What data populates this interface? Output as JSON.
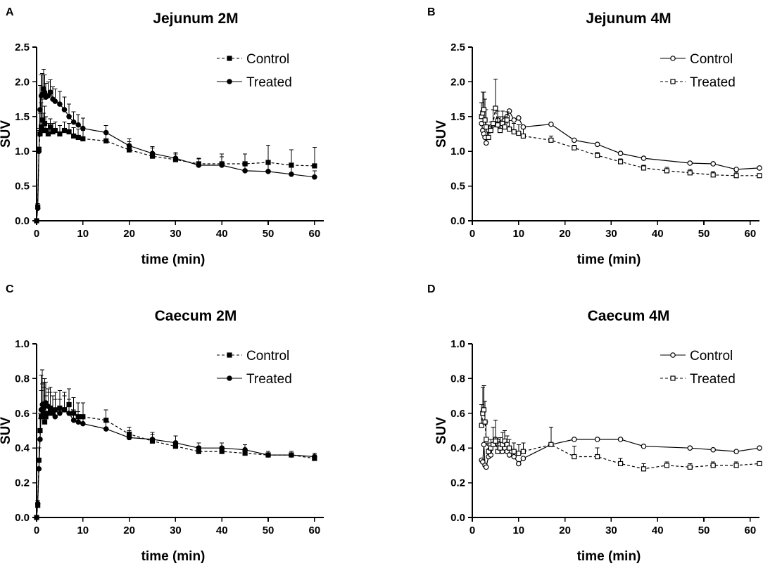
{
  "figure": {
    "panel_letters": [
      "A",
      "B",
      "C",
      "D"
    ]
  },
  "chart_data": [
    {
      "panel": "A",
      "type": "line",
      "title": "Jejunum 2M",
      "xlabel": "time (min)",
      "ylabel": "SUV",
      "xlim": [
        0,
        62
      ],
      "ylim": [
        0,
        2.5
      ],
      "xticks": [
        0,
        10,
        20,
        30,
        40,
        50,
        60
      ],
      "yticks": [
        0.0,
        0.5,
        1.0,
        1.5,
        2.0,
        2.5
      ],
      "ytick_labels": [
        "0.0",
        "0.5",
        "1.0",
        "1.5",
        "2.0",
        "2.5"
      ],
      "series": [
        {
          "name": "Control",
          "style": "dashed",
          "marker": "square",
          "filled": true,
          "x": [
            0,
            0.25,
            0.5,
            0.75,
            1,
            1.25,
            1.5,
            1.75,
            2,
            2.5,
            3,
            3.5,
            4,
            5,
            6,
            7,
            8,
            9,
            10,
            15,
            20,
            25,
            30,
            35,
            40,
            45,
            50,
            55,
            60
          ],
          "y": [
            0,
            0.2,
            1.03,
            1.25,
            1.35,
            1.45,
            1.3,
            1.4,
            1.3,
            1.25,
            1.35,
            1.28,
            1.3,
            1.25,
            1.3,
            1.28,
            1.22,
            1.2,
            1.18,
            1.15,
            1.02,
            0.93,
            0.88,
            0.82,
            0.82,
            0.82,
            0.84,
            0.8,
            0.79
          ],
          "err": [
            0,
            0.05,
            0.3,
            0.3,
            0.35,
            0.3,
            0.25,
            0.25,
            0.2,
            0.15,
            0.12,
            0.12,
            0.12,
            0.12,
            0.12,
            0.12,
            0.12,
            0.12,
            0.12,
            0.12,
            0.12,
            0.12,
            0.08,
            0.07,
            0.14,
            0.14,
            0.25,
            0.22,
            0.27
          ]
        },
        {
          "name": "Treated",
          "style": "solid",
          "marker": "circle",
          "filled": true,
          "x": [
            0,
            0.25,
            0.5,
            0.75,
            1,
            1.25,
            1.5,
            1.75,
            2,
            2.5,
            3,
            3.5,
            4,
            5,
            6,
            7,
            8,
            9,
            10,
            15,
            20,
            25,
            30,
            35,
            40,
            45,
            50,
            55,
            60
          ],
          "y": [
            0,
            0.18,
            1.0,
            1.6,
            1.8,
            1.82,
            1.9,
            1.85,
            1.78,
            1.8,
            1.85,
            1.75,
            1.72,
            1.68,
            1.6,
            1.5,
            1.42,
            1.38,
            1.33,
            1.27,
            1.08,
            0.97,
            0.9,
            0.8,
            0.8,
            0.72,
            0.71,
            0.67,
            0.63
          ],
          "err": [
            0,
            0.05,
            0.3,
            0.35,
            0.3,
            0.3,
            0.28,
            0.25,
            0.2,
            0.2,
            0.18,
            0.18,
            0.18,
            0.18,
            0.18,
            0.18,
            0.15,
            0.15,
            0.15,
            0.1,
            0.1,
            0.1,
            0.08,
            0.1,
            0.12,
            0.1,
            0.1,
            0.1,
            0.09
          ]
        }
      ]
    },
    {
      "panel": "B",
      "type": "line",
      "title": "Jejunum 4M",
      "xlabel": "time (min)",
      "ylabel": "SUV",
      "xlim": [
        0,
        62
      ],
      "ylim": [
        0,
        2.5
      ],
      "xticks": [
        0,
        10,
        20,
        30,
        40,
        50,
        60
      ],
      "yticks": [
        0.0,
        0.5,
        1.0,
        1.5,
        2.0,
        2.5
      ],
      "ytick_labels": [
        "0.0",
        "0.5",
        "1.0",
        "1.5",
        "2.0",
        "2.5"
      ],
      "series": [
        {
          "name": "Control",
          "style": "solid",
          "marker": "circle",
          "filled": false,
          "x": [
            2,
            2.25,
            2.5,
            2.75,
            3,
            3.5,
            4,
            4.5,
            5,
            5.5,
            6,
            6.5,
            7,
            7.5,
            8,
            9,
            10,
            11,
            17,
            22,
            27,
            32,
            37,
            47,
            52,
            57,
            62
          ],
          "y": [
            1.4,
            1.3,
            1.25,
            1.2,
            1.12,
            1.3,
            1.35,
            1.38,
            1.4,
            1.45,
            1.35,
            1.42,
            1.45,
            1.5,
            1.58,
            1.45,
            1.48,
            1.35,
            1.39,
            1.16,
            1.1,
            0.97,
            0.9,
            0.83,
            0.82,
            0.74,
            0.76
          ],
          "err": [
            0,
            0,
            0,
            0,
            0,
            0,
            0,
            0,
            0,
            0,
            0,
            0,
            0,
            0,
            0,
            0,
            0,
            0,
            0,
            0,
            0,
            0,
            0,
            0,
            0,
            0,
            0
          ]
        },
        {
          "name": "Treated",
          "style": "dashed",
          "marker": "square",
          "filled": false,
          "x": [
            2,
            2.25,
            2.5,
            2.75,
            3,
            3.5,
            4,
            4.5,
            5,
            5.5,
            6,
            6.5,
            7,
            7.5,
            8,
            9,
            10,
            11,
            17,
            22,
            27,
            32,
            37,
            42,
            47,
            52,
            57,
            62
          ],
          "y": [
            1.5,
            1.55,
            1.6,
            1.45,
            1.35,
            1.2,
            1.3,
            1.4,
            1.62,
            1.38,
            1.3,
            1.4,
            1.35,
            1.45,
            1.32,
            1.28,
            1.26,
            1.22,
            1.16,
            1.05,
            0.94,
            0.85,
            0.76,
            0.72,
            0.69,
            0.66,
            0.65,
            0.65
          ],
          "err": [
            0.2,
            0.3,
            0.25,
            0.3,
            0.25,
            0.15,
            0.12,
            0.2,
            0.42,
            0.2,
            0.2,
            0.18,
            0.15,
            0.12,
            0.12,
            0.12,
            0.12,
            0.1,
            0.06,
            0.04,
            0.04,
            0.04,
            0.04,
            0.05,
            0.05,
            0.05,
            0.05,
            0
          ]
        }
      ]
    },
    {
      "panel": "C",
      "type": "line",
      "title": "Caecum 2M",
      "xlabel": "time (min)",
      "ylabel": "SUV",
      "xlim": [
        0,
        62
      ],
      "ylim": [
        0,
        1.0
      ],
      "xticks": [
        0,
        10,
        20,
        30,
        40,
        50,
        60
      ],
      "yticks": [
        0.0,
        0.2,
        0.4,
        0.6,
        0.8,
        1.0
      ],
      "ytick_labels": [
        "0.0",
        "0.2",
        "0.4",
        "0.6",
        "0.8",
        "1.0"
      ],
      "series": [
        {
          "name": "Control",
          "style": "dashed",
          "marker": "square",
          "filled": true,
          "x": [
            0,
            0.25,
            0.5,
            0.75,
            1,
            1.25,
            1.5,
            1.75,
            2,
            2.5,
            3,
            3.5,
            4,
            5,
            6,
            7,
            8,
            9,
            10,
            15,
            20,
            25,
            30,
            35,
            40,
            45,
            50,
            55,
            60
          ],
          "y": [
            0,
            0.07,
            0.33,
            0.5,
            0.58,
            0.62,
            0.6,
            0.55,
            0.58,
            0.6,
            0.63,
            0.6,
            0.62,
            0.63,
            0.62,
            0.65,
            0.6,
            0.58,
            0.58,
            0.56,
            0.48,
            0.44,
            0.41,
            0.38,
            0.38,
            0.37,
            0.36,
            0.36,
            0.34
          ],
          "err": [
            0,
            0.02,
            0.07,
            0.1,
            0.15,
            0.15,
            0.15,
            0.12,
            0.12,
            0.12,
            0.12,
            0.1,
            0.1,
            0.1,
            0.1,
            0.09,
            0.09,
            0.08,
            0.08,
            0.06,
            0.04,
            0.04,
            0.03,
            0.03,
            0.02,
            0.02,
            0.02,
            0.02,
            0.02
          ]
        },
        {
          "name": "Treated",
          "style": "solid",
          "marker": "circle",
          "filled": true,
          "x": [
            0,
            0.25,
            0.5,
            0.75,
            1,
            1.25,
            1.5,
            1.75,
            2,
            2.5,
            3,
            3.5,
            4,
            5,
            6,
            7,
            8,
            9,
            10,
            15,
            20,
            25,
            30,
            35,
            40,
            45,
            50,
            55,
            60
          ],
          "y": [
            0,
            0.08,
            0.28,
            0.45,
            0.62,
            0.65,
            0.63,
            0.65,
            0.66,
            0.64,
            0.62,
            0.6,
            0.58,
            0.6,
            0.62,
            0.6,
            0.56,
            0.55,
            0.54,
            0.51,
            0.46,
            0.45,
            0.43,
            0.4,
            0.4,
            0.39,
            0.36,
            0.36,
            0.35
          ],
          "err": [
            0,
            0.02,
            0.05,
            0.12,
            0.2,
            0.2,
            0.15,
            0.15,
            0.12,
            0.1,
            0.1,
            0.1,
            0.1,
            0.08,
            0.08,
            0.08,
            0.06,
            0.06,
            0.05,
            0.05,
            0.04,
            0.04,
            0.04,
            0.03,
            0.03,
            0.03,
            0.02,
            0.02,
            0.02
          ]
        }
      ]
    },
    {
      "panel": "D",
      "type": "line",
      "title": "Caecum 4M",
      "xlabel": "time (min)",
      "ylabel": "SUV",
      "xlim": [
        0,
        62
      ],
      "ylim": [
        0,
        1.0
      ],
      "xticks": [
        0,
        10,
        20,
        30,
        40,
        50,
        60
      ],
      "yticks": [
        0.0,
        0.2,
        0.4,
        0.6,
        0.8,
        1.0
      ],
      "ytick_labels": [
        "0.0",
        "0.2",
        "0.4",
        "0.6",
        "0.8",
        "1.0"
      ],
      "series": [
        {
          "name": "Control",
          "style": "solid",
          "marker": "circle",
          "filled": false,
          "x": [
            2,
            2.25,
            2.5,
            2.75,
            3,
            3.5,
            4,
            4.5,
            5,
            5.5,
            6,
            6.5,
            7,
            7.5,
            8,
            9,
            10,
            11,
            17,
            22,
            27,
            32,
            37,
            47,
            52,
            57,
            62
          ],
          "y": [
            0.33,
            0.32,
            0.42,
            0.3,
            0.29,
            0.35,
            0.36,
            0.42,
            0.45,
            0.44,
            0.42,
            0.38,
            0.4,
            0.38,
            0.36,
            0.35,
            0.31,
            0.34,
            0.42,
            0.45,
            0.45,
            0.45,
            0.41,
            0.4,
            0.39,
            0.38,
            0.4
          ],
          "err": [
            0,
            0,
            0,
            0,
            0,
            0,
            0,
            0,
            0,
            0,
            0,
            0,
            0,
            0,
            0,
            0,
            0,
            0,
            0,
            0,
            0,
            0,
            0,
            0,
            0,
            0,
            0
          ]
        },
        {
          "name": "Treated",
          "style": "dashed",
          "marker": "square",
          "filled": false,
          "x": [
            2,
            2.25,
            2.5,
            2.75,
            3,
            3.5,
            4,
            4.5,
            5,
            5.5,
            6,
            6.5,
            7,
            7.5,
            8,
            9,
            10,
            11,
            17,
            22,
            27,
            32,
            37,
            42,
            47,
            52,
            57,
            62
          ],
          "y": [
            0.53,
            0.6,
            0.62,
            0.55,
            0.45,
            0.38,
            0.4,
            0.42,
            0.44,
            0.38,
            0.4,
            0.42,
            0.44,
            0.42,
            0.4,
            0.38,
            0.37,
            0.38,
            0.42,
            0.35,
            0.35,
            0.31,
            0.28,
            0.3,
            0.29,
            0.3,
            0.3,
            0.31
          ],
          "err": [
            0.12,
            0.15,
            0.14,
            0.12,
            0.1,
            0.05,
            0.05,
            0.1,
            0.12,
            0.06,
            0.06,
            0.07,
            0.06,
            0.05,
            0.05,
            0.05,
            0.05,
            0.05,
            0.1,
            0.06,
            0.05,
            0.03,
            0.03,
            0.02,
            0.02,
            0.02,
            0.02,
            0
          ]
        }
      ]
    }
  ]
}
